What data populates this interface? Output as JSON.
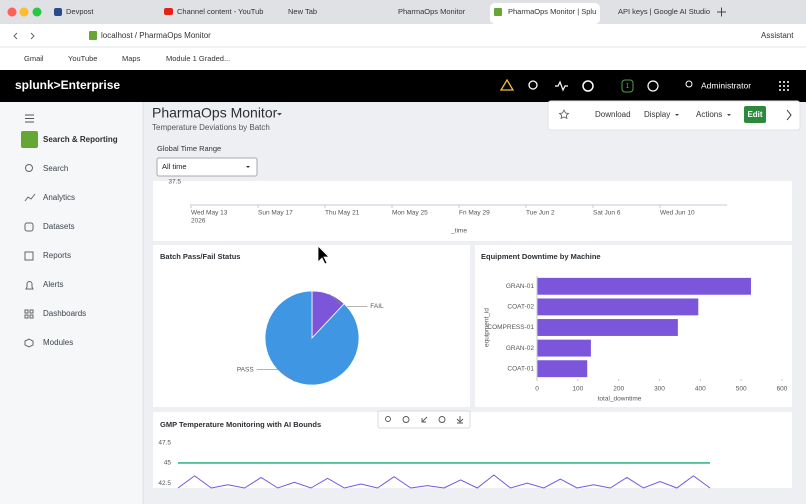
{
  "browser": {
    "tabs": [
      "Devpost",
      "Channel content - YouTub",
      "New Tab",
      "PharmaOps Monitor",
      "PharmaOps Monitor | Splu",
      "API keys | Google AI Studio"
    ],
    "address": "localhost / PharmaOps Monitor",
    "assistant": "Assistant",
    "bookmarks": [
      "Gmail",
      "YouTube",
      "Maps",
      "Module 1 Graded..."
    ]
  },
  "header": {
    "brand": "splunk>Enterprise",
    "notifications": "1",
    "user": "Administrator"
  },
  "sidebar": {
    "app": "Search & Reporting",
    "items": [
      "Search",
      "Analytics",
      "Datasets",
      "Reports",
      "Alerts",
      "Dashboards",
      "Modules"
    ]
  },
  "dashboard": {
    "title": "PharmaOps Monitor",
    "subtitle": "Temperature Deviations by Batch",
    "toolbar": [
      "Download",
      "Display",
      "Actions",
      "Edit"
    ],
    "time_range_label": "Global Time Range",
    "time_range_value": "All time"
  },
  "chart_data": [
    {
      "type": "line",
      "categories": [
        "Wed May 13",
        "Sun May 17",
        "Thu May 21",
        "Mon May 25",
        "Fri May 29",
        "Tue Jun 2",
        "Sat Jun 6",
        "Wed Jun 10"
      ],
      "first_label_year": "2026",
      "x_label": "_time",
      "yticks": [
        37.5
      ]
    },
    {
      "type": "pie",
      "title": "Batch Pass/Fail Status",
      "categories": [
        "FAIL",
        "PASS"
      ],
      "values": [
        12,
        88
      ],
      "colors": [
        "#7b56db",
        "#3f97e3"
      ]
    },
    {
      "type": "bar",
      "title": "Equipment Downtime by Machine",
      "orientation": "horizontal",
      "categories": [
        "GRAN-01",
        "COAT-02",
        "COMPRESS-01",
        "GRAN-02",
        "COAT-01"
      ],
      "values": [
        524,
        395,
        345,
        132,
        123
      ],
      "color": "#7b56db",
      "xlim": [
        0,
        600
      ],
      "xticks": [
        0,
        100,
        200,
        300,
        400,
        500,
        600
      ],
      "x_label": "total_downtime",
      "y_label": "equipment_id"
    },
    {
      "type": "line",
      "title": "GMP Temperature Monitoring with AI Bounds",
      "ylim": [
        41.9,
        48.2
      ],
      "yticks": [
        47.5,
        45,
        42.5
      ],
      "series": [
        {
          "color": "#1ba877",
          "values": [
            45,
            45
          ]
        },
        {
          "color": "#7b56db",
          "values": [
            41.9,
            43.4,
            41.9,
            42.3,
            41.9,
            43.2,
            41.9,
            42.6,
            41.9,
            43.1,
            41.9,
            42.4,
            41.9,
            43.3,
            41.9,
            42.2,
            41.9,
            42.9,
            41.9,
            43.5,
            41.9,
            42.5,
            41.9,
            43.0,
            41.9,
            42.3,
            41.9,
            43.2,
            41.9,
            42.7,
            41.9,
            43.4,
            41.9
          ]
        }
      ]
    }
  ]
}
